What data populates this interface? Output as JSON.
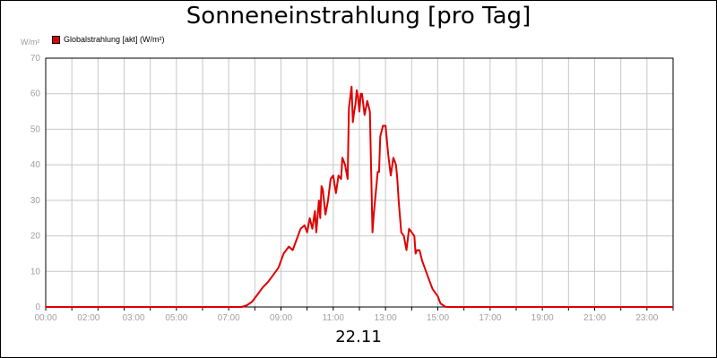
{
  "header": {
    "title": "Sonneneinstrahlung [pro Tag]"
  },
  "footer": {
    "date": "22.11"
  },
  "chart_data": {
    "type": "line",
    "title": "Sonneneinstrahlung [pro Tag]",
    "ylabel": "W/m²",
    "xlabel": "22.11",
    "xlim": [
      0,
      24
    ],
    "ylim": [
      0,
      70
    ],
    "grid": true,
    "legend_position": "top-left",
    "line_color": "#e00000",
    "y_ticks": [
      "0",
      "10",
      "20",
      "30",
      "40",
      "50",
      "60",
      "70"
    ],
    "y_tick_values": [
      0,
      10,
      20,
      30,
      40,
      50,
      60,
      70
    ],
    "x_ticks": [
      "00:00",
      "02:00",
      "03:00",
      "05:00",
      "07:00",
      "09:00",
      "11:00",
      "13:00",
      "15:00",
      "17:00",
      "19:00",
      "21:00",
      "23:00"
    ],
    "x_tick_values": [
      0,
      2,
      3,
      5,
      7,
      9,
      11,
      13,
      15,
      17,
      19,
      21,
      23
    ],
    "series": [
      {
        "name": "Globalstrahlung [akt] (W/m²)",
        "x": [
          0,
          7.0,
          7.5,
          7.7,
          7.9,
          8.1,
          8.3,
          8.5,
          8.7,
          8.9,
          9.0,
          9.1,
          9.3,
          9.45,
          9.6,
          9.75,
          9.9,
          10.0,
          10.1,
          10.2,
          10.3,
          10.35,
          10.45,
          10.5,
          10.55,
          10.6,
          10.7,
          10.8,
          10.9,
          11.0,
          11.1,
          11.2,
          11.3,
          11.35,
          11.45,
          11.55,
          11.6,
          11.7,
          11.75,
          11.8,
          11.85,
          11.9,
          11.95,
          12.0,
          12.05,
          12.1,
          12.2,
          12.3,
          12.4,
          12.5,
          12.55,
          12.6,
          12.7,
          12.75,
          12.8,
          12.9,
          13.0,
          13.1,
          13.2,
          13.3,
          13.4,
          13.45,
          13.5,
          13.6,
          13.7,
          13.8,
          13.9,
          14.0,
          14.1,
          14.15,
          14.2,
          14.3,
          14.4,
          14.5,
          14.6,
          14.7,
          14.8,
          14.9,
          15.0,
          15.1,
          15.2,
          15.3,
          15.5,
          15.7,
          15.9,
          16.1,
          16.3,
          16.5,
          16.7,
          17.0,
          24
        ],
        "values": [
          0,
          0,
          0,
          0.5,
          1.5,
          3.5,
          5.5,
          7,
          9,
          11,
          13,
          15,
          17,
          16,
          19,
          22,
          23,
          21,
          25,
          22,
          27,
          21,
          30,
          25,
          34,
          33,
          26,
          30,
          36,
          37,
          32,
          37,
          36,
          42,
          40,
          36,
          56,
          62,
          52,
          55,
          57,
          61,
          59,
          55,
          60,
          60,
          54,
          58,
          55,
          21,
          26,
          30,
          38,
          38,
          48,
          51,
          51,
          43,
          37,
          42,
          40,
          36,
          30,
          21,
          20,
          16,
          22,
          21,
          20,
          15,
          16,
          16,
          13,
          11,
          9,
          7,
          5,
          4,
          3,
          1,
          0.5,
          0,
          0,
          0,
          0,
          0,
          0,
          0,
          0,
          0,
          0
        ]
      }
    ]
  }
}
